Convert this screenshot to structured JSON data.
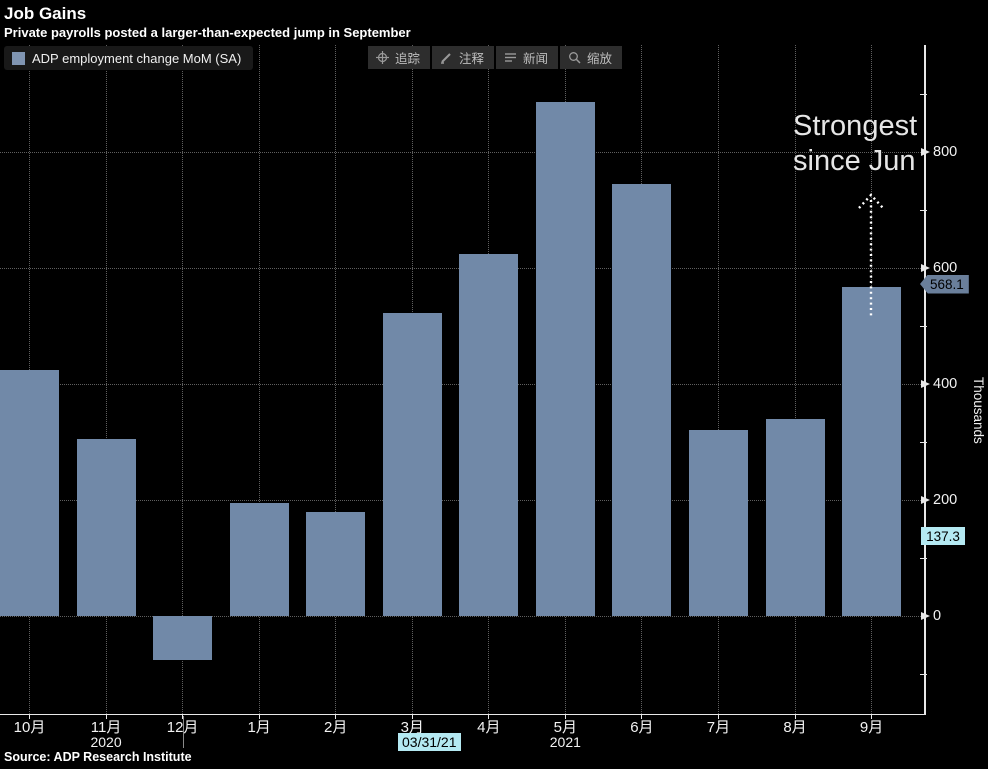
{
  "header": {
    "title": "Job Gains",
    "subtitle": "Private payrolls posted a larger-than-expected jump in September"
  },
  "legend": {
    "label": "ADP employment change MoM (SA)"
  },
  "toolbar": {
    "buttons": [
      {
        "icon": "crosshair-icon",
        "label": "追踪"
      },
      {
        "icon": "pencil-icon",
        "label": "注释"
      },
      {
        "icon": "news-lines-icon",
        "label": "新闻"
      },
      {
        "icon": "magnifier-icon",
        "label": "缩放"
      }
    ]
  },
  "annotation": {
    "line1": "Strongest",
    "line2": "since Jun"
  },
  "badges": {
    "last_value": "568.1",
    "tracker_value": "137.3",
    "tracker_date": "03/31/21"
  },
  "source": "Source: ADP Research Institute",
  "colors": {
    "bar": "#7189A8",
    "legend_swatch": "#8095B2",
    "last_badge": "#6A7F9B",
    "tracker_badge": "#B4E9F2",
    "grid": "#5F5F5F",
    "axis": "#E8E8E8",
    "background": "#000000"
  },
  "chart_data": {
    "type": "bar",
    "title": "Job Gains",
    "subtitle": "Private payrolls posted a larger-than-expected jump in September",
    "series_name": "ADP employment change MoM (SA)",
    "categories": [
      "10月",
      "11月",
      "12月",
      "1月",
      "2月",
      "3月",
      "4月",
      "5月",
      "6月",
      "7月",
      "8月",
      "9月"
    ],
    "values": [
      425,
      305,
      -76,
      195,
      180,
      523,
      624,
      887,
      745,
      320,
      340,
      568.1
    ],
    "year_markers": [
      {
        "label": "2020",
        "index": 1
      },
      {
        "label": "2021",
        "index": 7
      }
    ],
    "xlabel": "",
    "ylabel": "Thousands",
    "ylim": [
      -170,
      915
    ],
    "y_ticks": [
      0,
      200,
      400,
      600,
      800
    ],
    "y_minor_ticks": [
      -100,
      100,
      300,
      500,
      700,
      900
    ],
    "grid": true,
    "legend_position": "top-left",
    "annotation_text": "Strongest since Jun",
    "last_value_label": 568.1,
    "tracker": {
      "date": "03/31/21",
      "value": 137.3
    }
  }
}
